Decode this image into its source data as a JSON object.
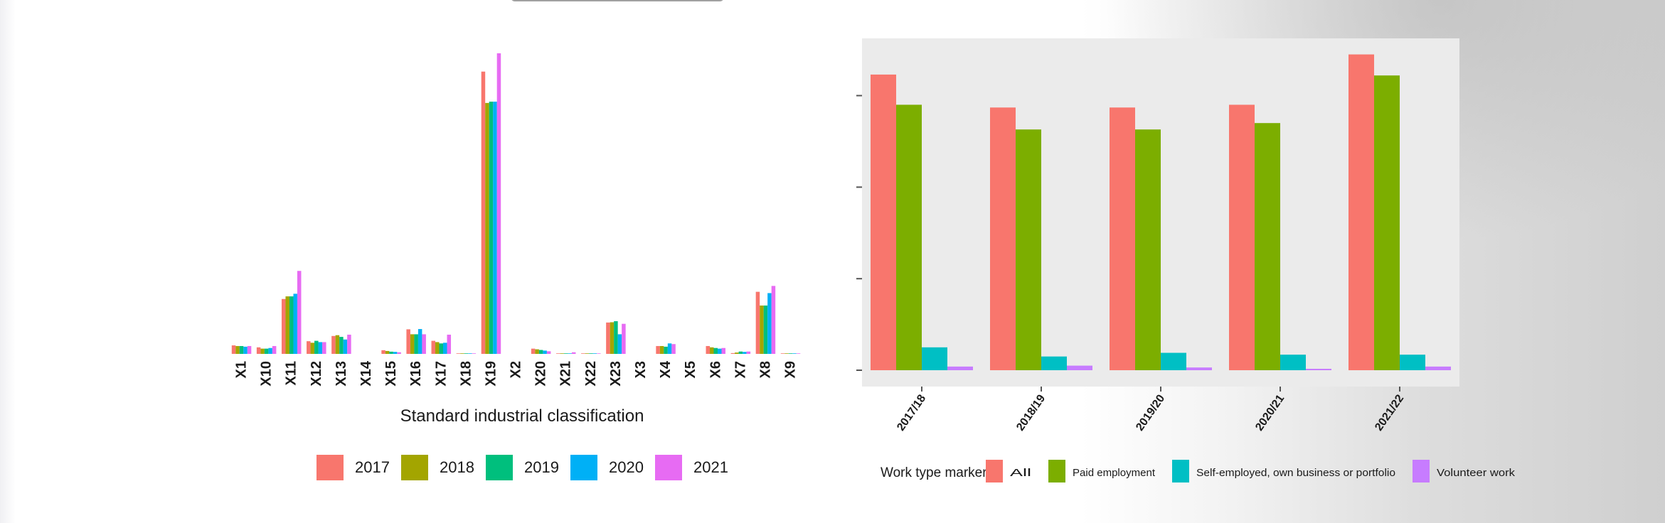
{
  "chart_data": [
    {
      "type": "bar",
      "title": "",
      "xlabel": "Standard industrial classification",
      "ylabel": "",
      "categories": [
        "X1",
        "X10",
        "X11",
        "X12",
        "X13",
        "X14",
        "X15",
        "X16",
        "X17",
        "X18",
        "X19",
        "X2",
        "X20",
        "X21",
        "X22",
        "X23",
        "X3",
        "X4",
        "X5",
        "X6",
        "X7",
        "X8",
        "X9"
      ],
      "series": [
        {
          "name": "2017",
          "color": "#F8766D",
          "values": [
            0.65,
            0.5,
            4.2,
            0.97,
            1.37,
            0,
            0.28,
            1.88,
            1.0,
            0.04,
            21.6,
            0,
            0.4,
            0.04,
            0.04,
            2.4,
            0,
            0.6,
            0,
            0.6,
            0.06,
            4.75,
            0.04
          ]
        },
        {
          "name": "2018",
          "color": "#A3A500",
          "values": [
            0.6,
            0.4,
            4.4,
            0.85,
            1.43,
            0,
            0.22,
            1.5,
            0.9,
            0.04,
            19.2,
            0,
            0.35,
            0.04,
            0.04,
            2.42,
            0,
            0.6,
            0,
            0.5,
            0.1,
            3.7,
            0.04
          ]
        },
        {
          "name": "2019",
          "color": "#00BF7D",
          "values": [
            0.6,
            0.4,
            4.4,
            1.0,
            1.3,
            0,
            0.17,
            1.5,
            0.8,
            0.04,
            19.3,
            0,
            0.3,
            0.04,
            0.04,
            2.5,
            0,
            0.55,
            0,
            0.45,
            0.18,
            3.7,
            0.04
          ]
        },
        {
          "name": "2020",
          "color": "#00B0F6",
          "values": [
            0.55,
            0.45,
            4.6,
            0.9,
            1.1,
            0,
            0.15,
            1.9,
            0.85,
            0.04,
            19.3,
            0,
            0.25,
            0.04,
            0.04,
            1.5,
            0,
            0.8,
            0,
            0.4,
            0.15,
            4.65,
            0.04
          ]
        },
        {
          "name": "2021",
          "color": "#E76BF3",
          "values": [
            0.6,
            0.6,
            6.35,
            0.9,
            1.47,
            0,
            0.12,
            1.5,
            1.47,
            0.04,
            23.0,
            0,
            0.2,
            0.12,
            0.04,
            2.3,
            0,
            0.75,
            0,
            0.45,
            0.18,
            5.2,
            0.04
          ]
        }
      ],
      "ylim": [
        0,
        23
      ],
      "grid": false,
      "legend_position": "bottom"
    },
    {
      "type": "bar",
      "title": "",
      "xlabel": "",
      "ylabel": "",
      "legend_title": "Work type marker",
      "categories": [
        "2017/18",
        "2018/19",
        "2019/20",
        "2020/21",
        "2021/22"
      ],
      "series": [
        {
          "name": "All",
          "color": "#F8766D",
          "values": [
            3.23,
            2.87,
            2.87,
            2.9,
            3.45
          ]
        },
        {
          "name": "Paid employment",
          "color": "#7CAE00",
          "values": [
            2.9,
            2.63,
            2.63,
            2.7,
            3.22
          ]
        },
        {
          "name": "Self-employed, own business or portfolio",
          "color": "#00BFC4",
          "values": [
            0.25,
            0.15,
            0.19,
            0.17,
            0.17
          ]
        },
        {
          "name": "Volunteer work",
          "color": "#C77CFF",
          "values": [
            0.04,
            0.05,
            0.03,
            0.01,
            0.04
          ]
        }
      ],
      "ylim": [
        0,
        3.47
      ],
      "yticks": [
        0,
        1,
        2,
        3
      ],
      "grid": false,
      "legend_position": "bottom"
    }
  ]
}
